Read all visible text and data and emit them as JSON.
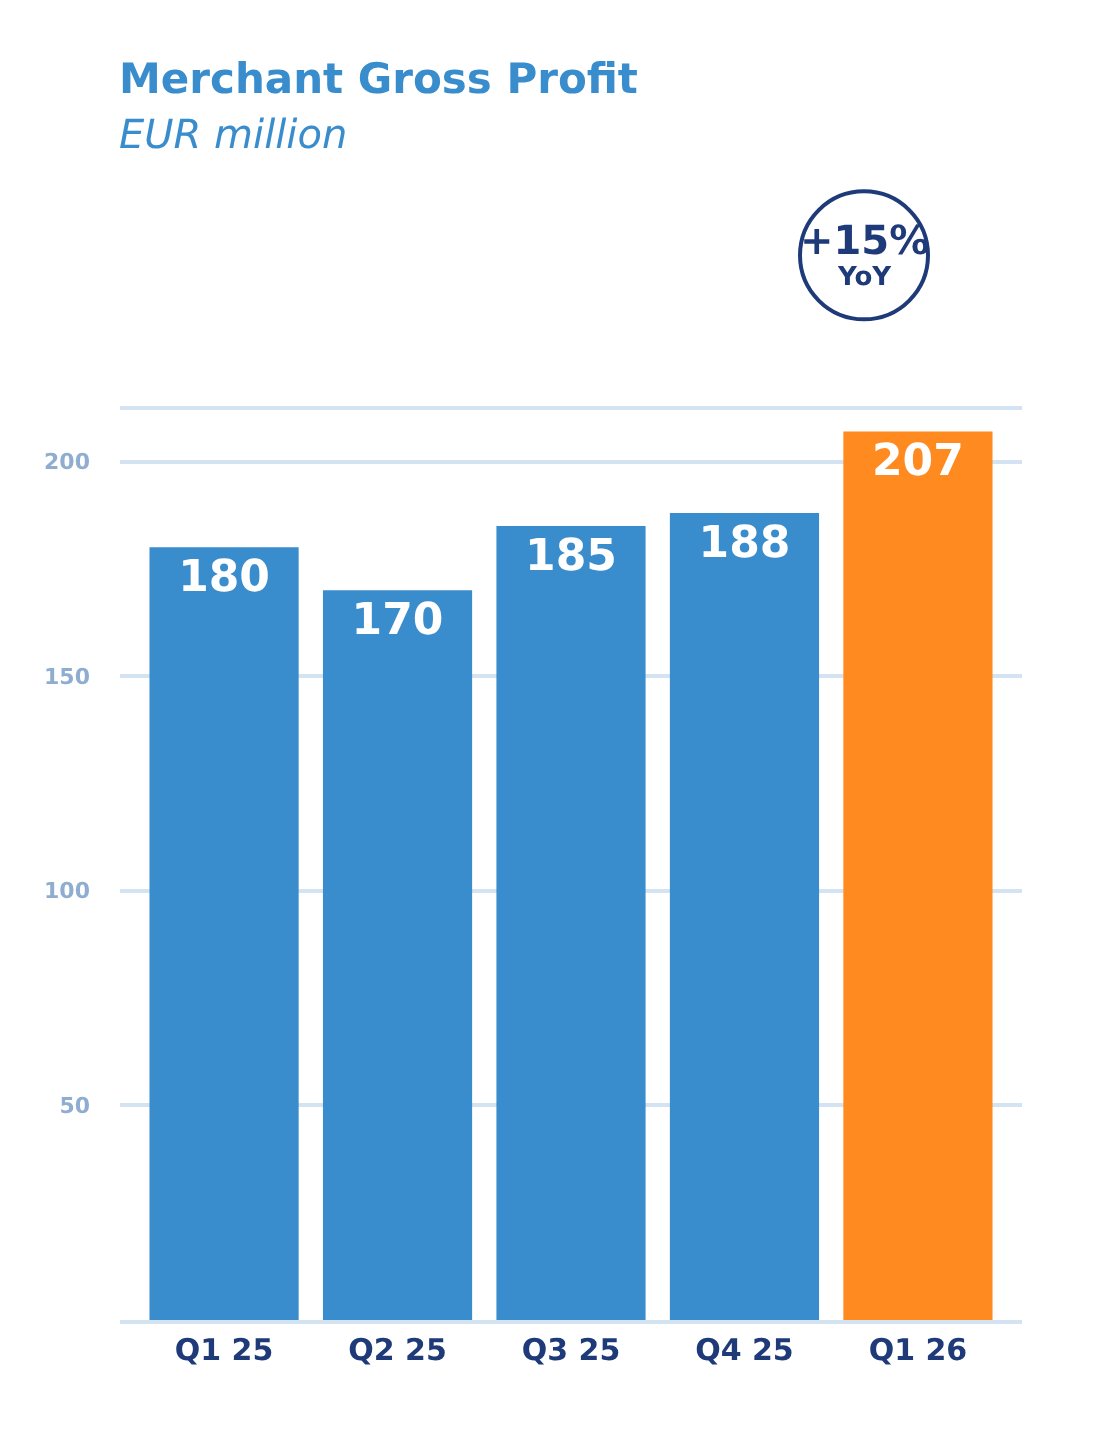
{
  "chart_data": {
    "type": "bar",
    "title": "Merchant Gross Profit",
    "subtitle": "EUR million",
    "categories": [
      "Q1 25",
      "Q2 25",
      "Q3 25",
      "Q4 25",
      "Q1 26"
    ],
    "values": [
      180,
      170,
      185,
      188,
      207
    ],
    "colors": [
      "#3a8dcc",
      "#3a8dcc",
      "#3a8dcc",
      "#3a8dcc",
      "#ff8a1f"
    ],
    "data_labels": true,
    "ylim": [
      0,
      212
    ],
    "yticks": [
      {
        "value": 0,
        "label": null
      },
      50,
      100,
      150,
      200
    ],
    "grid": "y",
    "annotations": [
      "+15%\nYoY"
    ]
  }
}
